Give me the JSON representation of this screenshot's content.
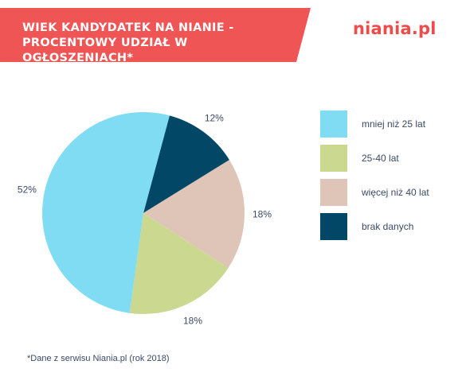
{
  "header": {
    "title": "WIEK KANDYDATEK NA NIANIE - PROCENTOWY UDZIAŁ W OGŁOSZENIACH*",
    "logo_text": "niania.pl",
    "banner_color": "#f05555",
    "logo_color": "#ef4b4b"
  },
  "chart_data": {
    "type": "pie",
    "title": "WIEK KANDYDATEK NA NIANIE - PROCENTOWY UDZIAŁ W OGŁOSZENIACH*",
    "slices": [
      {
        "label": "mniej niż 25 lat",
        "value": 52,
        "value_label": "52%",
        "color": "#80dcf2"
      },
      {
        "label": "25-40 lat",
        "value": 18,
        "value_label": "18%",
        "color": "#cbd890"
      },
      {
        "label": "więcej niż 40 lat",
        "value": 18,
        "value_label": "18%",
        "color": "#dec5b7"
      },
      {
        "label": "brak danych",
        "value": 12,
        "value_label": "12%",
        "color": "#024866"
      }
    ],
    "legend_position": "right"
  },
  "footnote": "*Dane z serwisu Niania.pl (rok 2018)"
}
